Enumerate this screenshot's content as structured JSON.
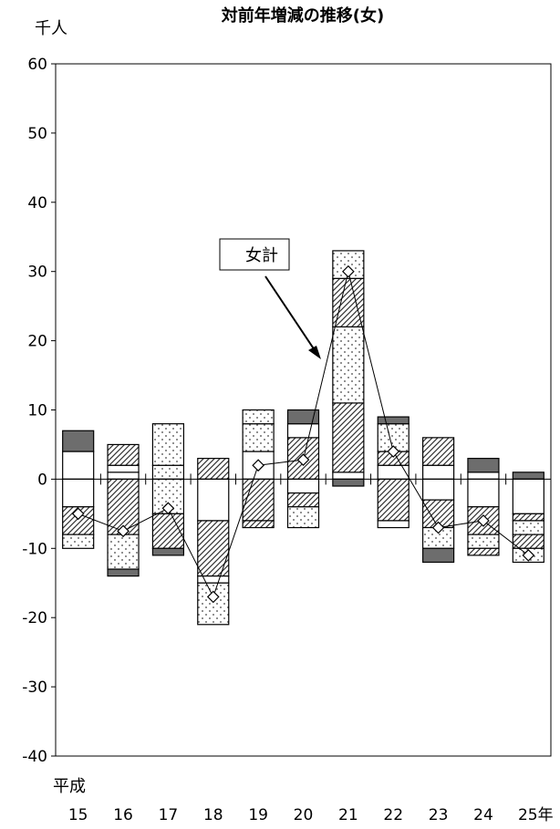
{
  "chart_data": {
    "type": "bar",
    "title": "対前年増減の推移(女)",
    "ylabel": "千人",
    "ylim": [
      -40,
      60
    ],
    "yticks": [
      60,
      50,
      40,
      30,
      20,
      10,
      0,
      -10,
      -20,
      -30,
      -40
    ],
    "ytick_labels": [
      "60",
      "50",
      "40",
      "30",
      "20",
      "10",
      "0",
      "-10",
      "-20",
      "-30",
      "-40"
    ],
    "era_label": "平成",
    "categories": [
      "15",
      "16",
      "17",
      "18",
      "19",
      "20",
      "21",
      "22",
      "23",
      "24",
      "25年"
    ],
    "grid": false,
    "stacks": [
      {
        "pos": [
          [
            0,
            4,
            "blank"
          ],
          [
            4,
            7,
            "dark"
          ]
        ],
        "neg": [
          [
            0,
            -4,
            "blank"
          ],
          [
            -4,
            -8,
            "hatch"
          ],
          [
            -8,
            -10,
            "dots"
          ]
        ]
      },
      {
        "pos": [
          [
            0,
            1,
            "blank"
          ],
          [
            1,
            2,
            "blank"
          ],
          [
            2,
            5,
            "hatch"
          ]
        ],
        "neg": [
          [
            0,
            -8,
            "hatch"
          ],
          [
            -8,
            -13,
            "dots"
          ],
          [
            -13,
            -14,
            "dark"
          ]
        ]
      },
      {
        "pos": [
          [
            0,
            2,
            "dots"
          ],
          [
            2,
            8,
            "dots"
          ]
        ],
        "neg": [
          [
            0,
            -5,
            "dots"
          ],
          [
            -5,
            -10,
            "hatch"
          ],
          [
            -10,
            -11,
            "dark"
          ]
        ]
      },
      {
        "pos": [
          [
            0,
            3,
            "hatch"
          ]
        ],
        "neg": [
          [
            0,
            -6,
            "blank"
          ],
          [
            -6,
            -14,
            "hatch"
          ],
          [
            -14,
            -15,
            "blank"
          ],
          [
            -15,
            -21,
            "dots"
          ]
        ]
      },
      {
        "pos": [
          [
            0,
            4,
            "blank"
          ],
          [
            4,
            8,
            "dots"
          ],
          [
            8,
            10,
            "dots"
          ]
        ],
        "neg": [
          [
            0,
            -6,
            "hatch"
          ],
          [
            -6,
            -7,
            "hatch"
          ]
        ]
      },
      {
        "pos": [
          [
            0,
            6,
            "hatch"
          ],
          [
            6,
            8,
            "blank"
          ],
          [
            8,
            10,
            "dark"
          ]
        ],
        "neg": [
          [
            0,
            -2,
            "blank"
          ],
          [
            -2,
            -4,
            "hatch"
          ],
          [
            -4,
            -7,
            "dots"
          ]
        ]
      },
      {
        "pos": [
          [
            0,
            1,
            "blank"
          ],
          [
            1,
            11,
            "hatch"
          ],
          [
            11,
            22,
            "dots"
          ],
          [
            22,
            29,
            "hatch"
          ],
          [
            29,
            33,
            "dots"
          ]
        ],
        "neg": [
          [
            0,
            -1,
            "dark"
          ]
        ]
      },
      {
        "pos": [
          [
            0,
            2,
            "blank"
          ],
          [
            2,
            4,
            "hatch"
          ],
          [
            4,
            8,
            "dots"
          ],
          [
            8,
            9,
            "dark"
          ]
        ],
        "neg": [
          [
            0,
            -6,
            "hatch"
          ],
          [
            -6,
            -7,
            "blank"
          ]
        ]
      },
      {
        "pos": [
          [
            0,
            2,
            "blank"
          ],
          [
            2,
            6,
            "hatch"
          ]
        ],
        "neg": [
          [
            0,
            -3,
            "blank"
          ],
          [
            -3,
            -7,
            "hatch"
          ],
          [
            -7,
            -10,
            "dots"
          ],
          [
            -10,
            -12,
            "dark"
          ]
        ]
      },
      {
        "pos": [
          [
            0,
            1,
            "blank"
          ],
          [
            1,
            3,
            "dark"
          ]
        ],
        "neg": [
          [
            0,
            -4,
            "blank"
          ],
          [
            -4,
            -8,
            "hatch"
          ],
          [
            -8,
            -10,
            "dots"
          ],
          [
            -10,
            -11,
            "hatch"
          ]
        ]
      },
      {
        "pos": [
          [
            0,
            1,
            "dark"
          ]
        ],
        "neg": [
          [
            0,
            -5,
            "blank"
          ],
          [
            -5,
            -6,
            "hatch"
          ],
          [
            -6,
            -8,
            "dots"
          ],
          [
            -8,
            -10,
            "hatch"
          ],
          [
            -10,
            -12,
            "dots"
          ]
        ]
      }
    ],
    "series": [
      {
        "name": "女計",
        "type": "line",
        "marker": "diamond",
        "values": [
          -5,
          -7.5,
          -4.2,
          -17,
          2,
          2.8,
          30,
          4,
          -7,
          -6,
          -11
        ]
      }
    ],
    "annotation": {
      "label": "女計"
    }
  }
}
